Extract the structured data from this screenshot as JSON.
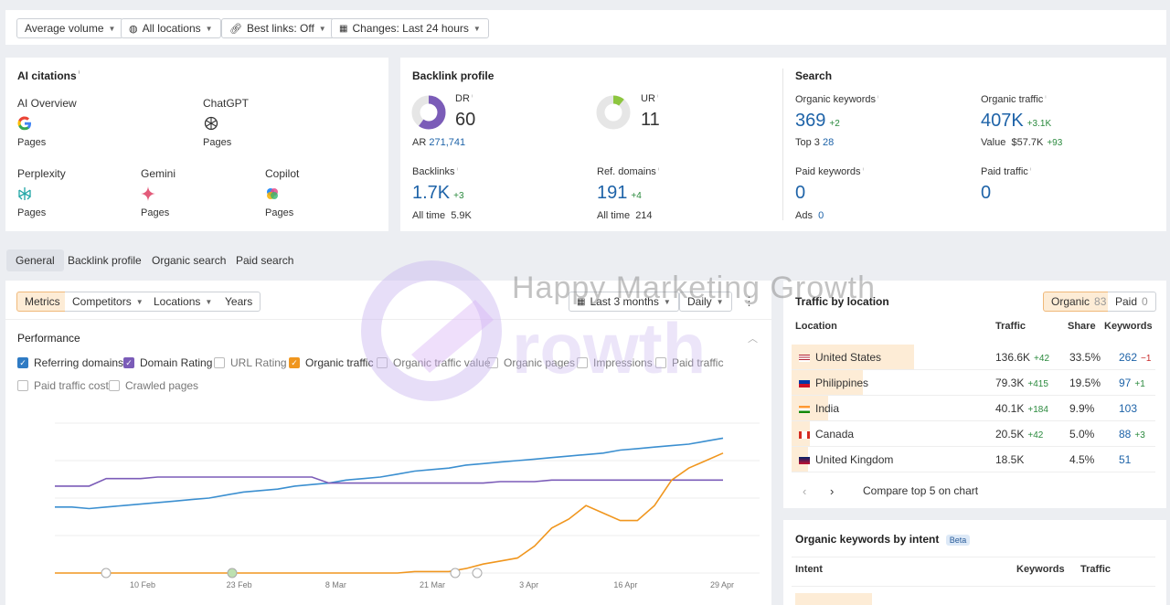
{
  "filters": {
    "volume": "Average volume",
    "locations": "All locations",
    "best_links": "Best links: Off",
    "changes": "Changes: Last 24 hours"
  },
  "ai_citations": {
    "title": "AI citations",
    "items": [
      {
        "name": "AI Overview",
        "sub": "Pages"
      },
      {
        "name": "ChatGPT",
        "sub": "Pages"
      },
      {
        "name": "Perplexity",
        "sub": "Pages"
      },
      {
        "name": "Gemini",
        "sub": "Pages"
      },
      {
        "name": "Copilot",
        "sub": "Pages"
      }
    ]
  },
  "backlink_profile": {
    "title": "Backlink profile",
    "dr_label": "DR",
    "dr_value": "60",
    "dr_fraction": 0.6,
    "ar_label": "AR",
    "ar_value": "271,741",
    "ur_label": "UR",
    "ur_value": "11",
    "ur_fraction": 0.11,
    "backlinks_label": "Backlinks",
    "backlinks_value": "1.7K",
    "backlinks_delta": "+3",
    "backlinks_alltime_label": "All time",
    "backlinks_alltime": "5.9K",
    "ref_label": "Ref. domains",
    "ref_value": "191",
    "ref_delta": "+4",
    "ref_alltime_label": "All time",
    "ref_alltime": "214"
  },
  "search": {
    "title": "Search",
    "org_kw_label": "Organic keywords",
    "org_kw_value": "369",
    "org_kw_delta": "+2",
    "top3_label": "Top 3",
    "top3_value": "28",
    "org_traffic_label": "Organic traffic",
    "org_traffic_value": "407K",
    "org_traffic_delta": "+3.1K",
    "value_label": "Value",
    "value_value": "$57.7K",
    "value_delta": "+93",
    "paid_kw_label": "Paid keywords",
    "paid_kw_value": "0",
    "ads_label": "Ads",
    "ads_value": "0",
    "paid_traffic_label": "Paid traffic",
    "paid_traffic_value": "0"
  },
  "tabs": [
    "General",
    "Backlink profile",
    "Organic search",
    "Paid search"
  ],
  "chart_controls": {
    "segments": [
      "Metrics",
      "Competitors",
      "Locations",
      "Years"
    ],
    "range": "Last 3 months",
    "interval": "Daily"
  },
  "performance": {
    "title": "Performance",
    "checkboxes": [
      {
        "label": "Referring domains",
        "checked": true,
        "color": "#2f7bc4"
      },
      {
        "label": "Domain Rating",
        "checked": true,
        "color": "#7b5cb8"
      },
      {
        "label": "URL Rating",
        "checked": false
      },
      {
        "label": "Organic traffic",
        "checked": true,
        "color": "#f0961e"
      },
      {
        "label": "Organic traffic value",
        "checked": false
      },
      {
        "label": "Organic pages",
        "checked": false
      },
      {
        "label": "Impressions",
        "checked": false
      },
      {
        "label": "Paid traffic",
        "checked": false
      },
      {
        "label": "Paid traffic cost",
        "checked": false
      },
      {
        "label": "Crawled pages",
        "checked": false
      }
    ]
  },
  "chart_data": {
    "type": "line",
    "x_labels": [
      "10 Feb",
      "23 Feb",
      "8 Mar",
      "21 Mar",
      "3 Apr",
      "16 Apr",
      "29 Apr"
    ],
    "grid": true,
    "series": [
      {
        "name": "Referring domains",
        "color": "#3b8fd0",
        "values": [
          0.44,
          0.44,
          0.43,
          0.44,
          0.45,
          0.46,
          0.47,
          0.48,
          0.49,
          0.5,
          0.52,
          0.54,
          0.55,
          0.56,
          0.58,
          0.59,
          0.6,
          0.62,
          0.63,
          0.64,
          0.66,
          0.68,
          0.69,
          0.7,
          0.72,
          0.73,
          0.74,
          0.75,
          0.76,
          0.77,
          0.78,
          0.79,
          0.8,
          0.82,
          0.83,
          0.84,
          0.85,
          0.86,
          0.88,
          0.9
        ]
      },
      {
        "name": "Domain Rating",
        "color": "#7b5cb8",
        "values": [
          0.58,
          0.58,
          0.58,
          0.63,
          0.63,
          0.63,
          0.64,
          0.64,
          0.64,
          0.64,
          0.64,
          0.64,
          0.64,
          0.64,
          0.64,
          0.64,
          0.6,
          0.6,
          0.6,
          0.6,
          0.6,
          0.6,
          0.6,
          0.6,
          0.6,
          0.6,
          0.61,
          0.61,
          0.61,
          0.62,
          0.62,
          0.62,
          0.62,
          0.62,
          0.62,
          0.62,
          0.62,
          0.62,
          0.62,
          0.62
        ]
      },
      {
        "name": "Organic traffic",
        "color": "#f0961e",
        "values": [
          0.0,
          0.0,
          0.0,
          0.0,
          0.0,
          0.0,
          0.0,
          0.0,
          0.0,
          0.0,
          0.0,
          0.0,
          0.0,
          0.0,
          0.0,
          0.0,
          0.0,
          0.0,
          0.0,
          0.0,
          0.0,
          0.01,
          0.01,
          0.01,
          0.03,
          0.06,
          0.08,
          0.1,
          0.18,
          0.3,
          0.36,
          0.45,
          0.4,
          0.35,
          0.35,
          0.45,
          0.62,
          0.7,
          0.75,
          0.8
        ]
      }
    ]
  },
  "traffic_by_location": {
    "title": "Traffic by location",
    "organic_label": "Organic",
    "organic_count": "83",
    "paid_label": "Paid",
    "paid_count": "0",
    "headers": [
      "Location",
      "Traffic",
      "Share",
      "Keywords"
    ],
    "rows": [
      {
        "country": "United States",
        "traffic": "136.6K",
        "traffic_delta": "+42",
        "share": "33.5%",
        "keywords": "262",
        "kw_delta": "−1",
        "share_fraction": 0.335,
        "flag": "us"
      },
      {
        "country": "Philippines",
        "traffic": "79.3K",
        "traffic_delta": "+415",
        "share": "19.5%",
        "keywords": "97",
        "kw_delta": "+1",
        "share_fraction": 0.195,
        "flag": "ph"
      },
      {
        "country": "India",
        "traffic": "40.1K",
        "traffic_delta": "+184",
        "share": "9.9%",
        "keywords": "103",
        "kw_delta": "",
        "share_fraction": 0.099,
        "flag": "in"
      },
      {
        "country": "Canada",
        "traffic": "20.5K",
        "traffic_delta": "+42",
        "share": "5.0%",
        "keywords": "88",
        "kw_delta": "+3",
        "share_fraction": 0.05,
        "flag": "ca"
      },
      {
        "country": "United Kingdom",
        "traffic": "18.5K",
        "traffic_delta": "",
        "share": "4.5%",
        "keywords": "51",
        "kw_delta": "",
        "share_fraction": 0.045,
        "flag": "gb"
      }
    ],
    "compare_label": "Compare top 5 on chart"
  },
  "intent": {
    "title": "Organic keywords by intent",
    "beta": "Beta",
    "headers": [
      "Intent",
      "Keywords",
      "Traffic"
    ]
  },
  "watermark": "Happy Marketing Growth"
}
